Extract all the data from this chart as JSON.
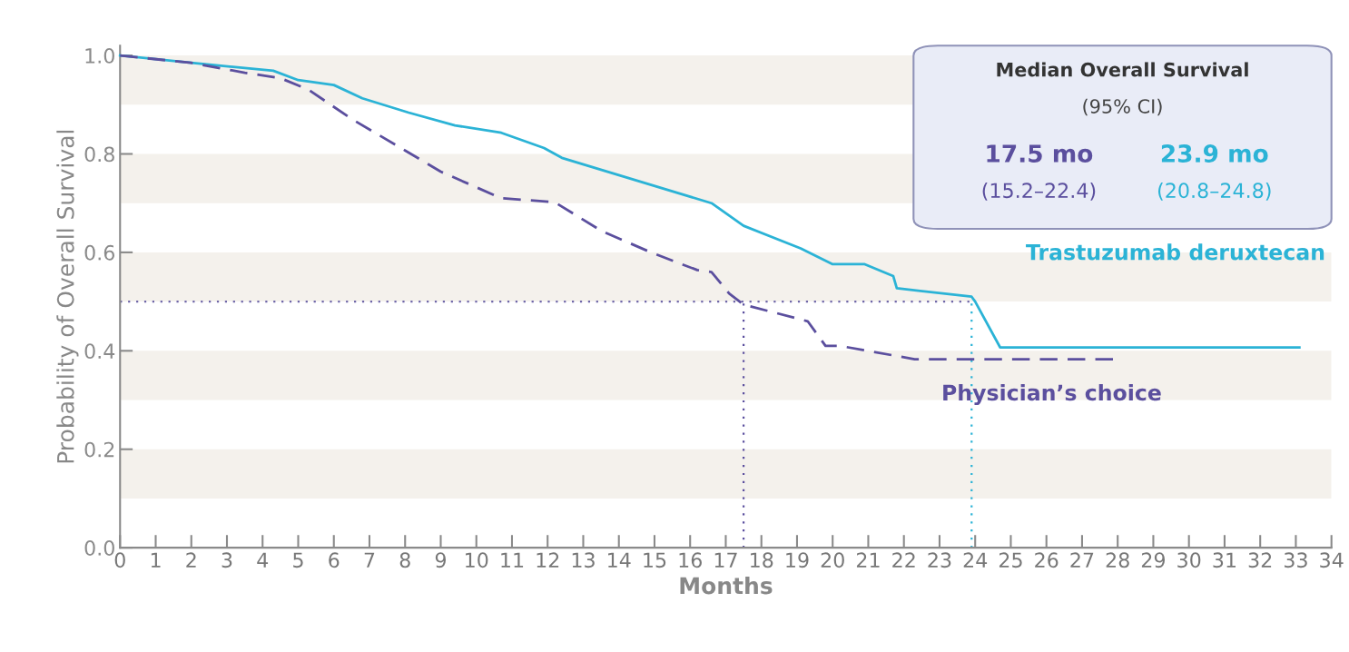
{
  "chart_data": {
    "type": "line",
    "xlabel": "Months",
    "ylabel": "Probability of Overall Survival",
    "xlim": [
      0,
      34
    ],
    "ylim": [
      0,
      1.02
    ],
    "xticks": [
      0,
      1,
      2,
      3,
      4,
      5,
      6,
      7,
      8,
      9,
      10,
      11,
      12,
      13,
      14,
      15,
      16,
      17,
      18,
      19,
      20,
      21,
      22,
      23,
      24,
      25,
      26,
      27,
      28,
      29,
      30,
      31,
      32,
      33,
      34
    ],
    "yticks": [
      {
        "value": 0,
        "label": "0.0"
      },
      {
        "value": 0.2,
        "label": "0.2"
      },
      {
        "value": 0.4,
        "label": "0.4"
      },
      {
        "value": 0.6,
        "label": "0.6"
      },
      {
        "value": 0.8,
        "label": "0.8"
      },
      {
        "value": 1.0,
        "label": "1.0"
      }
    ],
    "grid": false,
    "legend": false,
    "series": [
      {
        "name": "Trastuzumab deruxtecan",
        "color": "#2bb3d6",
        "line_style": "solid",
        "x": [
          0,
          2,
          4.3,
          5,
          6,
          6.8,
          8.1,
          9.4,
          10.7,
          11.9,
          12.4,
          14.0,
          16.6,
          17.5,
          19.1,
          20.0,
          20.9,
          21.7,
          21.8,
          23.9,
          24.0,
          24.7,
          33.1
        ],
        "values": [
          1.0,
          0.985,
          0.969,
          0.95,
          0.94,
          0.913,
          0.884,
          0.858,
          0.843,
          0.812,
          0.792,
          0.757,
          0.7,
          0.654,
          0.608,
          0.576,
          0.576,
          0.552,
          0.527,
          0.51,
          0.5,
          0.407,
          0.407
        ]
      },
      {
        "name": "Physician’s choice",
        "color": "#5b4f9e",
        "line_style": "dashed",
        "x": [
          0,
          2,
          3.5,
          4.5,
          5.3,
          6.5,
          8,
          9,
          10.7,
          12.2,
          13.5,
          14.9,
          16.2,
          16.6,
          17.1,
          17.5,
          19.3,
          19.8,
          20.2,
          22.3,
          27.9
        ],
        "values": [
          1.0,
          0.985,
          0.965,
          0.954,
          0.93,
          0.871,
          0.807,
          0.764,
          0.71,
          0.702,
          0.644,
          0.6,
          0.564,
          0.56,
          0.516,
          0.494,
          0.46,
          0.41,
          0.41,
          0.383,
          0.383
        ]
      }
    ],
    "ref_lines": [
      {
        "axis": "y",
        "value": 0.5,
        "color": "#6f66a8",
        "line_style": "dotted"
      },
      {
        "axis": "x",
        "value": 17.5,
        "color": "#5b4f9e",
        "line_style": "dotted"
      },
      {
        "axis": "x",
        "value": 23.9,
        "color": "#2bb3d6",
        "line_style": "dotted"
      }
    ],
    "bands": [
      {
        "axis": "y",
        "from": 0.9,
        "to": 1.0,
        "color": "#f4f1ec"
      },
      {
        "axis": "y",
        "from": 0.7,
        "to": 0.8,
        "color": "#f4f1ec"
      },
      {
        "axis": "y",
        "from": 0.5,
        "to": 0.6,
        "color": "#f4f1ec"
      },
      {
        "axis": "y",
        "from": 0.3,
        "to": 0.4,
        "color": "#f4f1ec"
      },
      {
        "axis": "y",
        "from": 0.1,
        "to": 0.2,
        "color": "#f4f1ec"
      }
    ],
    "annotations": [
      "Median Overall Survival",
      "(95% CI)",
      "17.5 mo",
      "(15.2–22.4)",
      "23.9 mo",
      "(20.8–24.8)"
    ]
  }
}
